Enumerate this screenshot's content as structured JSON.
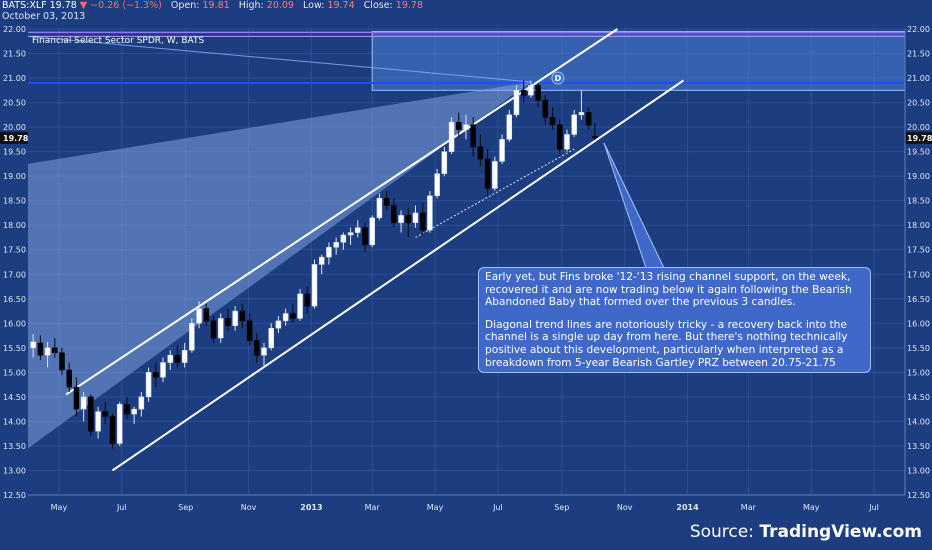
{
  "header": {
    "symbol": "BATS:XLF",
    "last": "19.78",
    "arrow": "▼",
    "change": "−0.26 (−1.3%)",
    "open_label": "Open:",
    "open": "19.81",
    "high_label": "High:",
    "high": "20.09",
    "low_label": "Low:",
    "low": "19.74",
    "close_label": "Close:",
    "close": "19.78",
    "date": "October 03, 2013"
  },
  "instrument_label": "Financial Select Sector SPDR, W, BATS",
  "annotation": {
    "para1": "Early yet, but Fins broke '12-'13 rising channel support, on the week, recovered it and are now trading below it again following the Bearish Abandoned Baby that formed over the previous 3 candles.",
    "para2": "Diagonal trend lines are notoriously tricky - a recovery back into the channel is a single up day from here.  But there's nothing technically positive about this development, particularly when interpreted as a breakdown from 5-year Bearish Gartley PRZ between 20.75-21.75"
  },
  "source": {
    "prefix": "Source: ",
    "brand": "TradingView.com"
  },
  "colors": {
    "background": "#1c3d80",
    "up_candle": "#ffffff",
    "down_candle": "#000000",
    "channel": "#ffffff",
    "przBox": "#4d7fd6",
    "resistance": "#1e4fff",
    "wedge": "#7fa3e0"
  },
  "chart_data": {
    "type": "candlestick",
    "ylim": [
      12.5,
      22.0
    ],
    "yticks": [
      "22.00",
      "21.50",
      "21.00",
      "20.50",
      "20.00",
      "19.50",
      "19.00",
      "18.50",
      "18.00",
      "17.50",
      "17.00",
      "16.50",
      "16.00",
      "15.50",
      "15.00",
      "14.50",
      "14.00",
      "13.50",
      "13.00",
      "12.50"
    ],
    "xtick_labels": [
      "May",
      "Jul",
      "Sep",
      "Nov",
      "2013",
      "Mar",
      "May",
      "Jul",
      "Sep",
      "Nov",
      "2014",
      "Mar",
      "May",
      "Jul"
    ],
    "x_range": [
      "2012-04-01",
      "2014-07-31"
    ],
    "last_price_label": "19.78",
    "pattern_point_label": "D",
    "candles": [
      {
        "d": "2012-04-06",
        "o": 15.5,
        "h": 15.78,
        "l": 15.3,
        "c": 15.62
      },
      {
        "d": "2012-04-13",
        "o": 15.6,
        "h": 15.75,
        "l": 15.25,
        "c": 15.35
      },
      {
        "d": "2012-04-20",
        "o": 15.35,
        "h": 15.62,
        "l": 15.1,
        "c": 15.5
      },
      {
        "d": "2012-04-27",
        "o": 15.5,
        "h": 15.7,
        "l": 15.3,
        "c": 15.4
      },
      {
        "d": "2012-05-04",
        "o": 15.4,
        "h": 15.5,
        "l": 14.95,
        "c": 15.05
      },
      {
        "d": "2012-05-11",
        "o": 15.05,
        "h": 15.2,
        "l": 14.6,
        "c": 14.7
      },
      {
        "d": "2012-05-18",
        "o": 14.7,
        "h": 14.9,
        "l": 14.1,
        "c": 14.25
      },
      {
        "d": "2012-05-25",
        "o": 14.25,
        "h": 14.6,
        "l": 14.0,
        "c": 14.5
      },
      {
        "d": "2012-06-01",
        "o": 14.5,
        "h": 14.55,
        "l": 13.7,
        "c": 13.8
      },
      {
        "d": "2012-06-08",
        "o": 13.8,
        "h": 14.3,
        "l": 13.65,
        "c": 14.2
      },
      {
        "d": "2012-06-15",
        "o": 14.2,
        "h": 14.4,
        "l": 13.95,
        "c": 14.1
      },
      {
        "d": "2012-06-22",
        "o": 14.1,
        "h": 14.15,
        "l": 13.45,
        "c": 13.55
      },
      {
        "d": "2012-06-29",
        "o": 13.55,
        "h": 14.4,
        "l": 13.5,
        "c": 14.35
      },
      {
        "d": "2012-07-06",
        "o": 14.35,
        "h": 14.5,
        "l": 14.05,
        "c": 14.15
      },
      {
        "d": "2012-07-13",
        "o": 14.15,
        "h": 14.3,
        "l": 13.95,
        "c": 14.25
      },
      {
        "d": "2012-07-20",
        "o": 14.25,
        "h": 14.6,
        "l": 14.1,
        "c": 14.5
      },
      {
        "d": "2012-07-27",
        "o": 14.5,
        "h": 15.1,
        "l": 14.4,
        "c": 15.0
      },
      {
        "d": "2012-08-03",
        "o": 15.0,
        "h": 15.2,
        "l": 14.7,
        "c": 14.9
      },
      {
        "d": "2012-08-10",
        "o": 14.9,
        "h": 15.3,
        "l": 14.8,
        "c": 15.2
      },
      {
        "d": "2012-08-17",
        "o": 15.2,
        "h": 15.45,
        "l": 15.05,
        "c": 15.35
      },
      {
        "d": "2012-08-24",
        "o": 15.35,
        "h": 15.55,
        "l": 15.1,
        "c": 15.2
      },
      {
        "d": "2012-08-31",
        "o": 15.2,
        "h": 15.6,
        "l": 15.1,
        "c": 15.45
      },
      {
        "d": "2012-09-07",
        "o": 15.45,
        "h": 16.1,
        "l": 15.4,
        "c": 16.0
      },
      {
        "d": "2012-09-14",
        "o": 16.0,
        "h": 16.45,
        "l": 15.9,
        "c": 16.3
      },
      {
        "d": "2012-09-21",
        "o": 16.3,
        "h": 16.4,
        "l": 15.95,
        "c": 16.05
      },
      {
        "d": "2012-09-28",
        "o": 16.05,
        "h": 16.15,
        "l": 15.6,
        "c": 15.7
      },
      {
        "d": "2012-10-05",
        "o": 15.7,
        "h": 16.2,
        "l": 15.6,
        "c": 16.1
      },
      {
        "d": "2012-10-12",
        "o": 16.1,
        "h": 16.3,
        "l": 15.85,
        "c": 15.95
      },
      {
        "d": "2012-10-19",
        "o": 15.95,
        "h": 16.35,
        "l": 15.85,
        "c": 16.25
      },
      {
        "d": "2012-10-26",
        "o": 16.25,
        "h": 16.4,
        "l": 15.9,
        "c": 16.05
      },
      {
        "d": "2012-11-02",
        "o": 16.05,
        "h": 16.2,
        "l": 15.55,
        "c": 15.65
      },
      {
        "d": "2012-11-09",
        "o": 15.65,
        "h": 15.8,
        "l": 15.2,
        "c": 15.35
      },
      {
        "d": "2012-11-16",
        "o": 15.35,
        "h": 15.6,
        "l": 15.1,
        "c": 15.5
      },
      {
        "d": "2012-11-23",
        "o": 15.5,
        "h": 16.0,
        "l": 15.45,
        "c": 15.9
      },
      {
        "d": "2012-11-30",
        "o": 15.9,
        "h": 16.15,
        "l": 15.8,
        "c": 16.05
      },
      {
        "d": "2012-12-07",
        "o": 16.05,
        "h": 16.3,
        "l": 15.95,
        "c": 16.2
      },
      {
        "d": "2012-12-14",
        "o": 16.2,
        "h": 16.4,
        "l": 16.0,
        "c": 16.1
      },
      {
        "d": "2012-12-21",
        "o": 16.1,
        "h": 16.7,
        "l": 16.05,
        "c": 16.6
      },
      {
        "d": "2012-12-28",
        "o": 16.6,
        "h": 16.75,
        "l": 16.2,
        "c": 16.35
      },
      {
        "d": "2013-01-04",
        "o": 16.35,
        "h": 17.3,
        "l": 16.3,
        "c": 17.2
      },
      {
        "d": "2013-01-11",
        "o": 17.2,
        "h": 17.4,
        "l": 17.0,
        "c": 17.35
      },
      {
        "d": "2013-01-18",
        "o": 17.35,
        "h": 17.65,
        "l": 17.2,
        "c": 17.55
      },
      {
        "d": "2013-01-25",
        "o": 17.55,
        "h": 17.75,
        "l": 17.4,
        "c": 17.65
      },
      {
        "d": "2013-02-01",
        "o": 17.65,
        "h": 17.85,
        "l": 17.5,
        "c": 17.8
      },
      {
        "d": "2013-02-08",
        "o": 17.8,
        "h": 17.95,
        "l": 17.6,
        "c": 17.85
      },
      {
        "d": "2013-02-15",
        "o": 17.85,
        "h": 18.1,
        "l": 17.75,
        "c": 17.95
      },
      {
        "d": "2013-02-22",
        "o": 17.95,
        "h": 18.05,
        "l": 17.45,
        "c": 17.6
      },
      {
        "d": "2013-03-01",
        "o": 17.6,
        "h": 18.2,
        "l": 17.55,
        "c": 18.15
      },
      {
        "d": "2013-03-08",
        "o": 18.15,
        "h": 18.65,
        "l": 18.1,
        "c": 18.55
      },
      {
        "d": "2013-03-15",
        "o": 18.55,
        "h": 18.7,
        "l": 18.3,
        "c": 18.4
      },
      {
        "d": "2013-03-22",
        "o": 18.4,
        "h": 18.55,
        "l": 17.95,
        "c": 18.05
      },
      {
        "d": "2013-03-29",
        "o": 18.05,
        "h": 18.3,
        "l": 17.85,
        "c": 18.2
      },
      {
        "d": "2013-04-05",
        "o": 18.2,
        "h": 18.35,
        "l": 17.75,
        "c": 18.05
      },
      {
        "d": "2013-04-12",
        "o": 18.05,
        "h": 18.4,
        "l": 17.95,
        "c": 18.25
      },
      {
        "d": "2013-04-19",
        "o": 18.25,
        "h": 18.45,
        "l": 17.8,
        "c": 17.9
      },
      {
        "d": "2013-04-26",
        "o": 17.9,
        "h": 18.7,
        "l": 17.85,
        "c": 18.6
      },
      {
        "d": "2013-05-03",
        "o": 18.6,
        "h": 19.15,
        "l": 18.55,
        "c": 19.05
      },
      {
        "d": "2013-05-10",
        "o": 19.05,
        "h": 19.6,
        "l": 19.0,
        "c": 19.5
      },
      {
        "d": "2013-05-17",
        "o": 19.5,
        "h": 20.2,
        "l": 19.45,
        "c": 20.1
      },
      {
        "d": "2013-05-24",
        "o": 20.1,
        "h": 20.3,
        "l": 19.8,
        "c": 19.95
      },
      {
        "d": "2013-05-31",
        "o": 19.95,
        "h": 20.25,
        "l": 19.75,
        "c": 20.05
      },
      {
        "d": "2013-06-07",
        "o": 20.05,
        "h": 20.2,
        "l": 19.4,
        "c": 19.6
      },
      {
        "d": "2013-06-14",
        "o": 19.6,
        "h": 19.85,
        "l": 19.2,
        "c": 19.35
      },
      {
        "d": "2013-06-21",
        "o": 19.35,
        "h": 19.55,
        "l": 18.6,
        "c": 18.75
      },
      {
        "d": "2013-06-28",
        "o": 18.75,
        "h": 19.4,
        "l": 18.7,
        "c": 19.3
      },
      {
        "d": "2013-07-05",
        "o": 19.3,
        "h": 19.85,
        "l": 19.25,
        "c": 19.75
      },
      {
        "d": "2013-07-12",
        "o": 19.75,
        "h": 20.35,
        "l": 19.7,
        "c": 20.25
      },
      {
        "d": "2013-07-19",
        "o": 20.25,
        "h": 20.85,
        "l": 20.2,
        "c": 20.75
      },
      {
        "d": "2013-07-26",
        "o": 20.75,
        "h": 20.95,
        "l": 20.5,
        "c": 20.65
      },
      {
        "d": "2013-08-02",
        "o": 20.65,
        "h": 20.95,
        "l": 20.6,
        "c": 20.85
      },
      {
        "d": "2013-08-09",
        "o": 20.85,
        "h": 20.9,
        "l": 20.4,
        "c": 20.55
      },
      {
        "d": "2013-08-16",
        "o": 20.55,
        "h": 20.65,
        "l": 20.05,
        "c": 20.2
      },
      {
        "d": "2013-08-23",
        "o": 20.2,
        "h": 20.4,
        "l": 19.95,
        "c": 20.05
      },
      {
        "d": "2013-08-30",
        "o": 20.05,
        "h": 20.15,
        "l": 19.4,
        "c": 19.55
      },
      {
        "d": "2013-09-06",
        "o": 19.55,
        "h": 19.95,
        "l": 19.5,
        "c": 19.85
      },
      {
        "d": "2013-09-13",
        "o": 19.85,
        "h": 20.35,
        "l": 19.8,
        "c": 20.25
      },
      {
        "d": "2013-09-20",
        "o": 20.25,
        "h": 20.75,
        "l": 20.15,
        "c": 20.3
      },
      {
        "d": "2013-09-27",
        "o": 20.3,
        "h": 20.4,
        "l": 19.95,
        "c": 20.04
      },
      {
        "d": "2013-10-03",
        "o": 19.81,
        "h": 20.09,
        "l": 19.74,
        "c": 19.78
      }
    ]
  }
}
